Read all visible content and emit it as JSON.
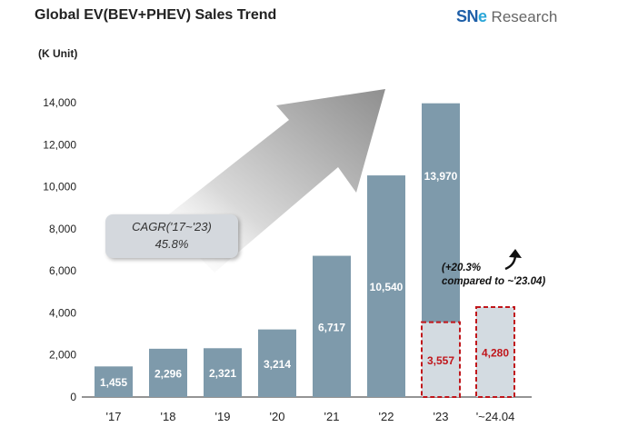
{
  "header": {
    "title": "Global EV(BEV+PHEV)  Sales Trend",
    "unit": "(K Unit)",
    "logo_brand_main": "SN",
    "logo_brand_dot": "e",
    "logo_sub": "Research"
  },
  "annotations": {
    "cagr_line1": "CAGR('17~'23)",
    "cagr_line2": "45.8%",
    "note_line1": "(+20.3%",
    "note_line2": "compared to ~'23.04)"
  },
  "colors": {
    "bar": "#7e9aab",
    "bar_partial": "#d3dbe1",
    "partial_border": "#c0161b",
    "axis": "#555555"
  },
  "chart_data": {
    "type": "bar",
    "title": "Global EV(BEV+PHEV)  Sales Trend",
    "ylabel": "(K Unit)",
    "ylim": [
      0,
      14000
    ],
    "yticks": [
      0,
      2000,
      4000,
      6000,
      8000,
      10000,
      12000,
      14000
    ],
    "ytick_labels": [
      "0",
      "2,000",
      "4,000",
      "6,000",
      "8,000",
      "10,000",
      "12,000",
      "14,000"
    ],
    "categories": [
      "'17",
      "'18",
      "'19",
      "'20",
      "'21",
      "'22",
      "'23",
      "'~24.04"
    ],
    "values": [
      1455,
      2296,
      2321,
      3214,
      6717,
      10540,
      13970,
      4280
    ],
    "labels": [
      "1,455",
      "2,296",
      "2,321",
      "3,214",
      "6,717",
      "10,540",
      "13,970",
      "4,280"
    ],
    "partial_segment": {
      "category": "'23",
      "value": 3557,
      "label": "3,557"
    },
    "highlighted_categories": [
      "'~24.04"
    ]
  }
}
